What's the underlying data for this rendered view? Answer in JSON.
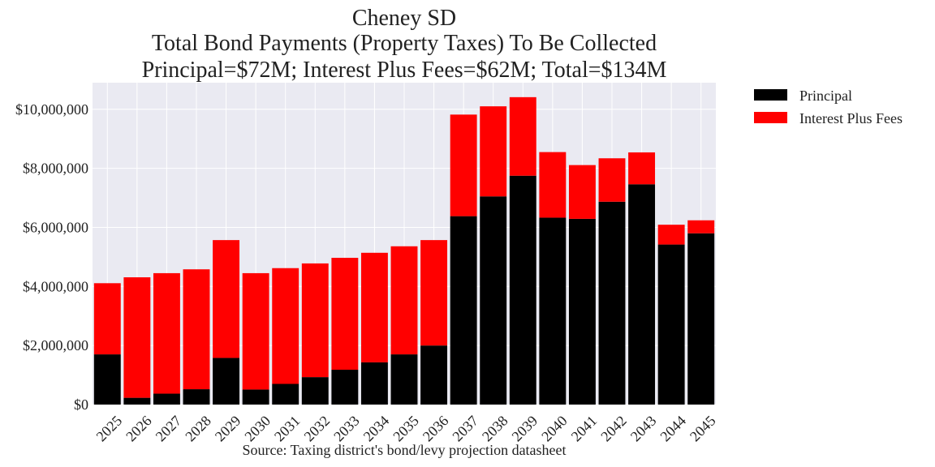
{
  "chart_data": {
    "type": "bar",
    "stacked": true,
    "title_lines": [
      "Cheney SD",
      "Total Bond Payments (Property Taxes) To Be Collected",
      "Principal=$72M; Interest Plus Fees=$62M; Total=$134M"
    ],
    "xlabel": "Source: Taxing district's bond/levy projection datasheet",
    "ylabel": "",
    "categories": [
      "2025",
      "2026",
      "2027",
      "2028",
      "2029",
      "2030",
      "2031",
      "2032",
      "2033",
      "2034",
      "2035",
      "2036",
      "2037",
      "2038",
      "2039",
      "2040",
      "2041",
      "2042",
      "2043",
      "2044",
      "2045"
    ],
    "series": [
      {
        "name": "Principal",
        "color": "#000000",
        "values": [
          1700000,
          230000,
          370000,
          520000,
          1580000,
          510000,
          700000,
          930000,
          1180000,
          1430000,
          1700000,
          2000000,
          6380000,
          7050000,
          7750000,
          6330000,
          6290000,
          6870000,
          7460000,
          5420000,
          5800000
        ]
      },
      {
        "name": "Interest Plus Fees",
        "color": "#ff0000",
        "values": [
          2410000,
          4080000,
          4080000,
          4060000,
          3990000,
          3940000,
          3920000,
          3850000,
          3790000,
          3710000,
          3660000,
          3570000,
          3440000,
          3050000,
          2660000,
          2220000,
          1820000,
          1470000,
          1080000,
          670000,
          440000
        ]
      }
    ],
    "ylim": [
      0,
      10900000
    ],
    "yticks": [
      0,
      2000000,
      4000000,
      6000000,
      8000000,
      10000000
    ],
    "ytick_labels": [
      "$0",
      "$2,000,000",
      "$4,000,000",
      "$6,000,000",
      "$8,000,000",
      "$10,000,000"
    ],
    "grid": true,
    "legend_position": "outside-top-right",
    "colors": {
      "plot_background": "#eaeaf2",
      "grid": "#ffffff"
    }
  }
}
